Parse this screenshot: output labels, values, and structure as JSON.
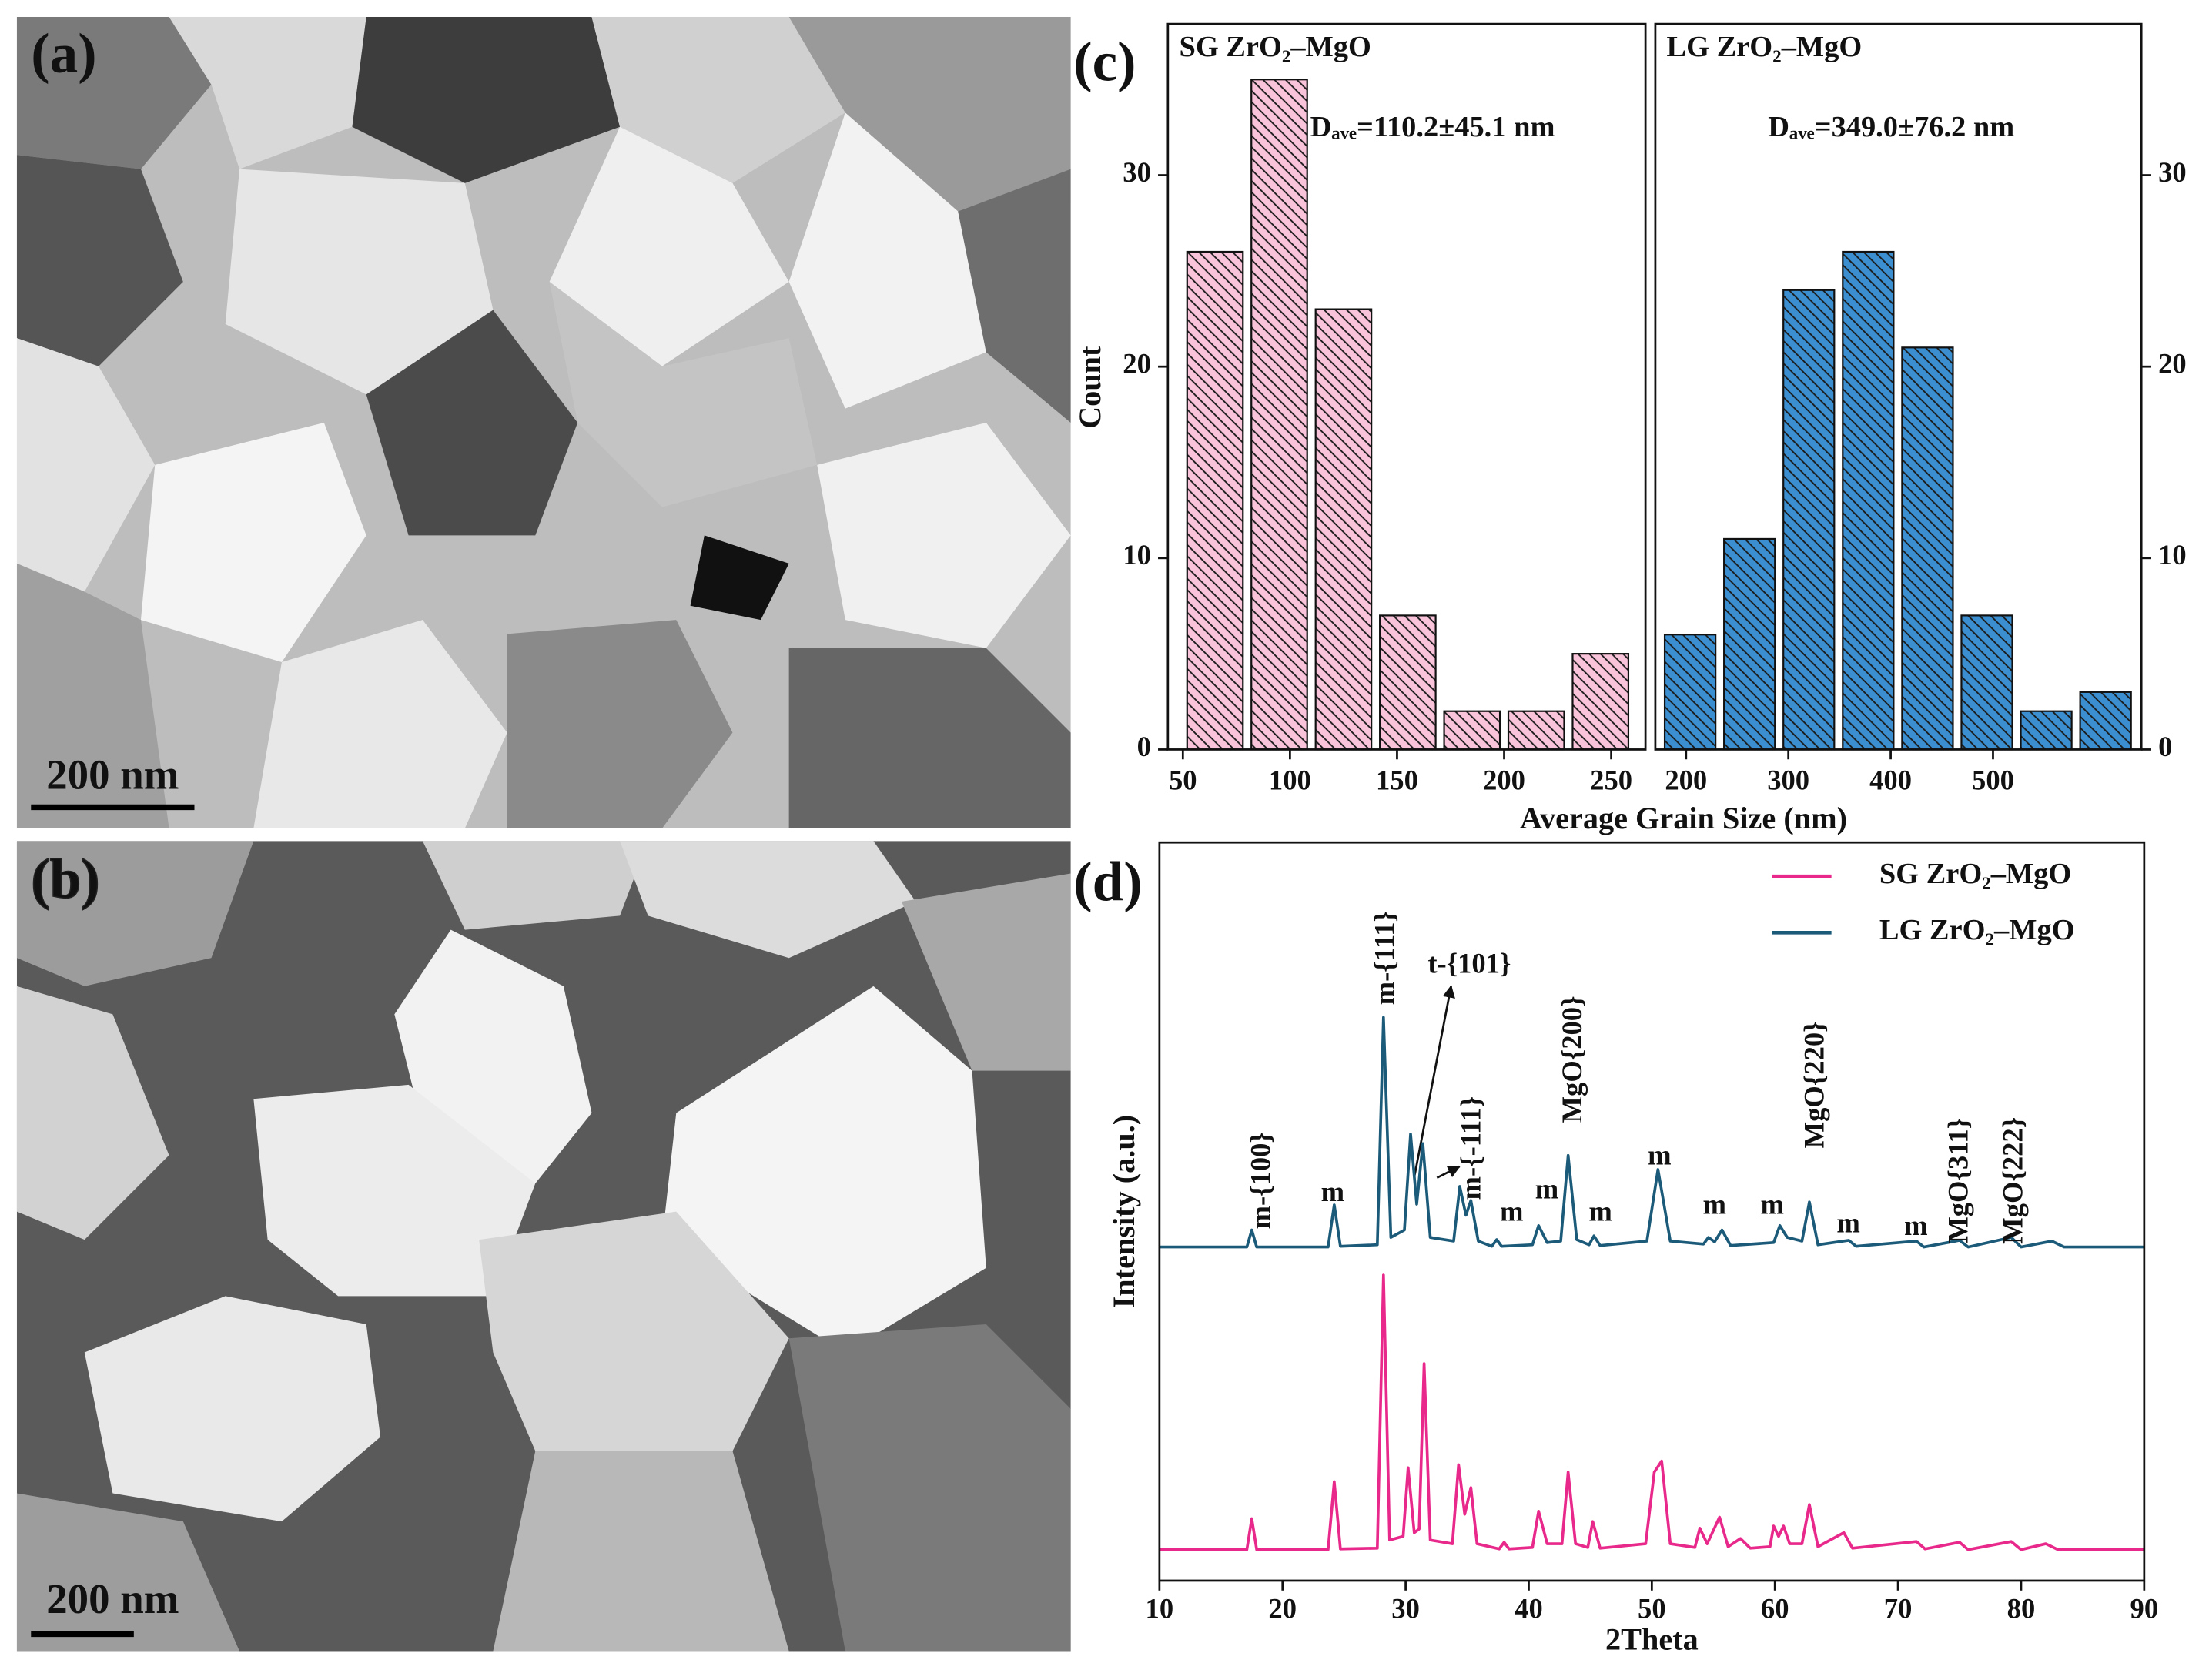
{
  "panels": [
    {
      "label": "(a)",
      "scale_bar": "200 nm"
    },
    {
      "label": "(b)",
      "scale_bar": "200 nm"
    }
  ],
  "chart_data": [
    {
      "type": "histogram",
      "panel_label": "(c)",
      "title": "SG ZrO₂–MgO",
      "annotation": "Dₐᵥₑ=110.2±45.1 nm",
      "xlabel": "Average Grain Size (nm)",
      "ylabel": "Count",
      "color": "#f9c3da",
      "yaxis_side": "left",
      "bins": [
        50,
        80,
        110,
        140,
        170,
        200,
        230,
        260
      ],
      "values": [
        26,
        35,
        23,
        7,
        2,
        2,
        5
      ],
      "xlim": [
        43,
        266
      ],
      "xticks": [
        50,
        100,
        150,
        200,
        250
      ],
      "ylim": [
        0,
        37.9
      ],
      "yticks": [
        0,
        10,
        20,
        30
      ]
    },
    {
      "type": "histogram",
      "title": "LG ZrO₂–MgO",
      "annotation": "Dₐᵥₑ=349.0±76.2 nm",
      "color": "#3b8fd0",
      "yaxis_side": "right",
      "bins": [
        175,
        233,
        291,
        349,
        407,
        465,
        523,
        581,
        639
      ],
      "values": [
        6,
        11,
        24,
        26,
        21,
        7,
        2,
        3
      ],
      "xlim": [
        170,
        645
      ],
      "xticks": [
        200,
        300,
        400,
        500
      ],
      "ylim": [
        0,
        37.9
      ],
      "yticks": [
        0,
        10,
        20,
        30
      ]
    },
    {
      "type": "line",
      "panel_label": "(d)",
      "xlabel": "2Theta",
      "ylabel": "Intensity (a.u.)",
      "legend": "upper right",
      "xlim": [
        10,
        90
      ],
      "xticks": [
        10,
        20,
        30,
        40,
        50,
        60,
        70,
        80,
        90
      ],
      "ylim": [
        0,
        100
      ],
      "series": [
        {
          "name": "SG ZrO₂–MgO",
          "color": "#e8288a",
          "x": [
            10,
            17.1,
            17.5,
            17.9,
            23.7,
            24.2,
            24.7,
            27.7,
            28.2,
            28.7,
            29.8,
            30.2,
            30.7,
            31.1,
            31.5,
            32,
            33.8,
            34.3,
            34.8,
            35.3,
            35.8,
            37.6,
            38,
            38.4,
            40.3,
            40.8,
            41.5,
            42.7,
            43.2,
            43.8,
            44.8,
            45.2,
            45.8,
            49.5,
            50.2,
            50.8,
            51.5,
            53.5,
            53.9,
            54.5,
            55.5,
            56.2,
            57.2,
            58,
            59.6,
            59.9,
            60.3,
            60.7,
            61.2,
            62.2,
            62.8,
            63.5,
            65.6,
            66.3,
            71.5,
            72.2,
            75,
            75.7,
            79.2,
            80,
            82,
            83,
            90
          ],
          "values": [
            4.2,
            4.2,
            8.4,
            4.2,
            4.2,
            13.4,
            4.3,
            4.4,
            41.4,
            5.5,
            6,
            15.3,
            6.5,
            7,
            29.4,
            5.5,
            5,
            15.7,
            9,
            12.6,
            5,
            4.3,
            5.2,
            4.3,
            4.5,
            9.4,
            5,
            5,
            14.7,
            5,
            4.5,
            8,
            4.4,
            5,
            14.7,
            16.2,
            5,
            4.5,
            7.1,
            5,
            8.6,
            4.6,
            5.7,
            4.4,
            4.6,
            7.4,
            6,
            7.4,
            5,
            5,
            10.3,
            4.6,
            6.5,
            4.4,
            5.3,
            4.3,
            5.2,
            4.2,
            5.3,
            4.2,
            5,
            4.2,
            4.2
          ]
        },
        {
          "name": "LG ZrO₂–MgO",
          "color": "#1b5a78",
          "x": [
            10,
            17.1,
            17.5,
            17.9,
            23.7,
            24.2,
            24.7,
            27.7,
            28.2,
            28.8,
            29.9,
            30.4,
            30.9,
            31.4,
            32,
            33.9,
            34.4,
            34.9,
            35.3,
            35.9,
            37,
            37.4,
            37.8,
            40.3,
            40.8,
            41.5,
            42.6,
            43.2,
            43.9,
            44.9,
            45.3,
            45.8,
            49.6,
            50.5,
            51.5,
            54.2,
            54.6,
            55.1,
            55.7,
            56.4,
            59.9,
            60.4,
            61,
            62.2,
            62.8,
            63.5,
            66,
            66.6,
            71.5,
            72.1,
            75,
            75.7,
            79.2,
            80,
            82.5,
            83.5,
            90
          ],
          "values": [
            45.2,
            45.2,
            47.5,
            45.2,
            45.2,
            50.9,
            45.3,
            45.5,
            76.3,
            46.5,
            47.5,
            60.5,
            51,
            59.2,
            46.5,
            46,
            53.4,
            49.5,
            51.5,
            46,
            45.3,
            46.2,
            45.3,
            45.5,
            48.1,
            45.8,
            46,
            57.6,
            46.2,
            45.5,
            46.7,
            45.4,
            46,
            55.7,
            46,
            45.6,
            46.5,
            45.9,
            47.5,
            45.4,
            45.8,
            48.1,
            46.5,
            46,
            51.3,
            45.5,
            46.1,
            45.3,
            46,
            45.2,
            46.1,
            45.2,
            46.5,
            45.2,
            46,
            45.2,
            45.2
          ]
        }
      ],
      "annotations": [
        "m-{100}",
        "m",
        "m-{111}",
        "t-{101}",
        "m-{-111}",
        "m",
        "m",
        "MgO{200}",
        "m",
        "m",
        "m",
        "m",
        "MgO{220}",
        "m",
        "m",
        "MgO{311}",
        "MgO{222}"
      ]
    }
  ]
}
